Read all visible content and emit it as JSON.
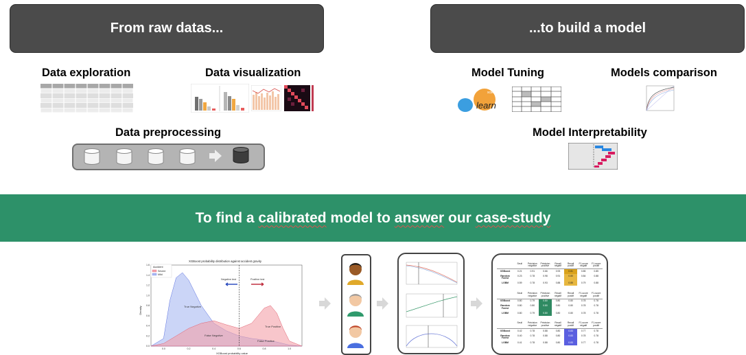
{
  "header_left": {
    "title": "From raw datas..."
  },
  "header_right": {
    "title": "...to build a model"
  },
  "data_exploration": {
    "label": "Data exploration"
  },
  "data_visualization": {
    "label": "Data visualization"
  },
  "data_preprocessing": {
    "label": "Data preprocessing"
  },
  "model_tuning": {
    "label": "Model Tuning",
    "sklearn_top": "scikit",
    "sklearn_bottom": "learn"
  },
  "models_comparison": {
    "label": "Models comparison"
  },
  "model_interpretability": {
    "label": "Model Interpretability"
  },
  "banner": {
    "text_before": "To find a ",
    "word1": "calibrated",
    "text_mid": " model to ",
    "word2": "answer",
    "text_after": " our ",
    "word3": "case-study"
  },
  "density_chart": {
    "title": "XGBoost probability distribution against accident gravity",
    "legend_title": "Accident",
    "legend_items": [
      "Severe",
      "Mild"
    ],
    "ylabel": "Density",
    "xlabel": "XGBoost probability value",
    "label_true_negative": "True Negative",
    "label_false_negative": "False Negative",
    "label_true_positive": "True Positive",
    "label_false_positive": "False Positive",
    "label_negative_test": "Negative test",
    "label_positive_test": "Positive test",
    "colors": {
      "severe": "#f4a0a8",
      "mild": "#a9b9f2"
    }
  },
  "chart_data": {
    "type": "area",
    "title": "XGBoost probability distribution against accident gravity",
    "xlabel": "XGBoost probability value",
    "ylabel": "Density",
    "xlim": [
      -0.1,
      1.1
    ],
    "ylim": [
      0,
      1.6
    ],
    "x_ticks": [
      "0.0",
      "0.2",
      "0.4",
      "0.6",
      "0.8",
      "1.0"
    ],
    "y_ticks": [
      "0.0",
      "0.2",
      "0.4",
      "0.6",
      "0.8",
      "1.0",
      "1.2",
      "1.4",
      "1.6"
    ],
    "threshold": 0.6,
    "series": [
      {
        "name": "Severe",
        "x": [
          -0.1,
          0.0,
          0.1,
          0.2,
          0.3,
          0.4,
          0.5,
          0.6,
          0.7,
          0.75,
          0.8,
          0.85,
          0.9,
          0.95,
          1.0,
          1.1
        ],
        "values": [
          0.0,
          0.05,
          0.2,
          0.35,
          0.45,
          0.5,
          0.42,
          0.35,
          0.45,
          0.6,
          0.75,
          0.8,
          0.65,
          0.35,
          0.1,
          0.0
        ]
      },
      {
        "name": "Mild",
        "x": [
          -0.1,
          0.0,
          0.05,
          0.1,
          0.15,
          0.2,
          0.3,
          0.4,
          0.5,
          0.6,
          0.7,
          0.8,
          0.9,
          1.0,
          1.1
        ],
        "values": [
          0.0,
          0.15,
          0.9,
          1.35,
          1.45,
          1.3,
          0.8,
          0.45,
          0.3,
          0.2,
          0.15,
          0.12,
          0.08,
          0.02,
          0.0
        ]
      }
    ]
  },
  "table": {
    "headers": [
      "",
      "Seuil",
      "Précision négative",
      "Précision positive",
      "Recall négatif",
      "Recall positif",
      "F1-score négatif",
      "F1-score positif"
    ],
    "groups": [
      {
        "rows": [
          [
            "XGBoost",
            "0.21",
            "0.91",
            "0.66",
            "0.93",
            "0.81",
            "0.85",
            "0.85"
          ],
          [
            "Random Forest",
            "0.23",
            "0.78",
            "0.98",
            "0.91",
            "0.80",
            "0.84",
            "0.88"
          ],
          [
            "LGBM",
            "0.59",
            "0.78",
            "0.93",
            "0.88",
            "0.85",
            "0.79",
            "0.88"
          ]
        ]
      },
      {
        "rows": [
          [
            "XGBoost",
            "0.80",
            "0.79",
            "0.80",
            "0.80",
            "0.80",
            "0.78",
            "0.78"
          ],
          [
            "Random Forest",
            "0.80",
            "0.80",
            "0.80",
            "0.80",
            "0.80",
            "0.78",
            "0.78"
          ],
          [
            "LGBM",
            "0.80",
            "0.79",
            "0.80",
            "0.80",
            "0.80",
            "0.78",
            "0.78"
          ]
        ]
      },
      {
        "rows": [
          [
            "XGBoost",
            "0.42",
            "0.78",
            "0.88",
            "0.80",
            "0.83",
            "0.77",
            "0.78"
          ],
          [
            "Random Forest",
            "0.40",
            "0.78",
            "0.88",
            "0.80",
            "0.83",
            "0.78",
            "0.78"
          ],
          [
            "LGBM",
            "0.41",
            "0.78",
            "0.88",
            "0.80",
            "0.83",
            "0.77",
            "0.78"
          ]
        ]
      }
    ]
  }
}
